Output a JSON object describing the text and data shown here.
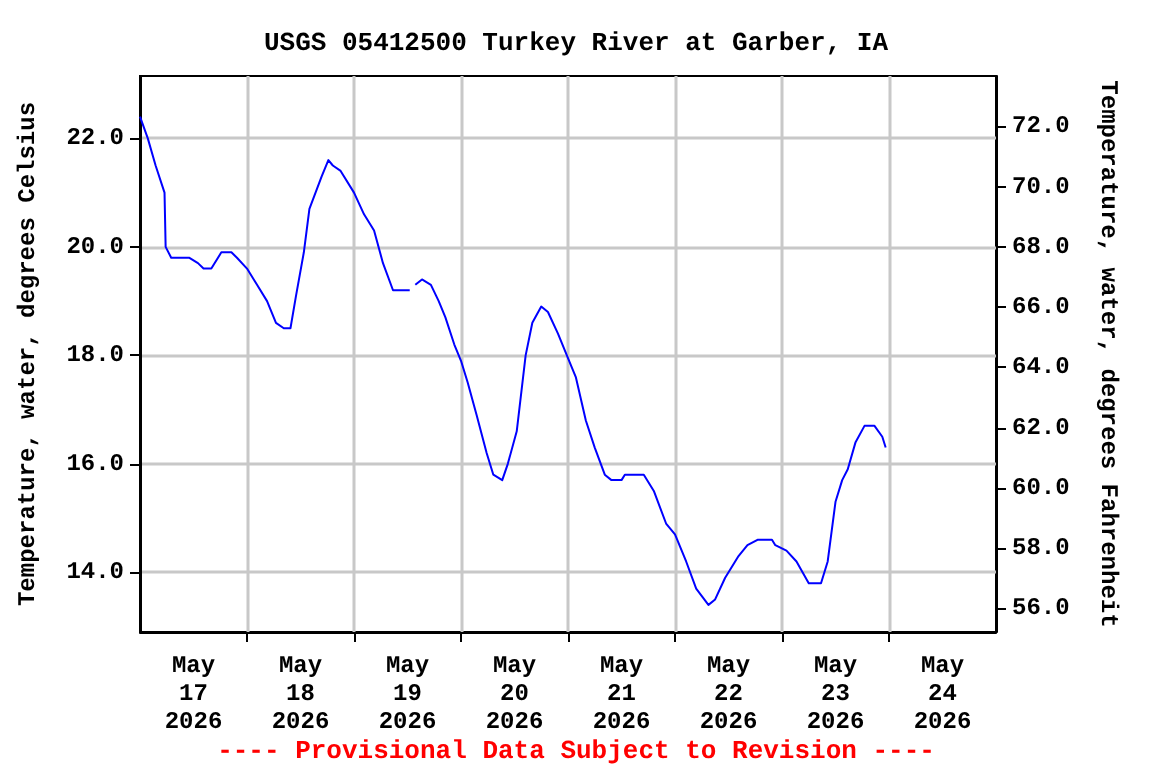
{
  "chart_data": {
    "type": "line",
    "title": "USGS 05412500 Turkey River at Garber, IA",
    "ylabel": "Temperature, water, degrees Celsius",
    "y2label": "Temperature, water, degrees Fahrenheit",
    "annotations": [
      "---- Provisional Data Subject to Revision ----"
    ],
    "x": [
      "2026-05-17T00:00",
      "2026-05-17T01:45",
      "2026-05-17T03:30",
      "2026-05-17T05:30",
      "2026-05-17T05:45",
      "2026-05-17T07:00",
      "2026-05-17T11:00",
      "2026-05-17T13:00",
      "2026-05-17T14:15",
      "2026-05-17T16:00",
      "2026-05-17T18:15",
      "2026-05-17T20:30",
      "2026-05-17T21:45",
      "2026-05-18T00:00",
      "2026-05-18T02:15",
      "2026-05-18T04:30",
      "2026-05-18T06:30",
      "2026-05-18T08:15",
      "2026-05-18T09:45",
      "2026-05-18T11:00",
      "2026-05-18T12:45",
      "2026-05-18T14:00",
      "2026-05-18T16:45",
      "2026-05-18T18:15",
      "2026-05-18T19:15",
      "2026-05-18T21:00",
      "2026-05-19T00:00",
      "2026-05-19T02:15",
      "2026-05-19T04:30",
      "2026-05-19T06:30",
      "2026-05-19T08:45",
      "2026-05-19T12:30",
      "2026-05-19T13:00",
      "2026-05-19T13:45",
      "2026-05-19T15:15",
      "2026-05-19T17:15",
      "2026-05-19T19:00",
      "2026-05-19T20:30",
      "2026-05-19T22:30",
      "2026-05-20T00:00",
      "2026-05-20T01:30",
      "2026-05-20T03:30",
      "2026-05-20T05:45",
      "2026-05-20T07:15",
      "2026-05-20T09:15",
      "2026-05-20T10:30",
      "2026-05-20T12:30",
      "2026-05-20T14:30",
      "2026-05-20T16:00",
      "2026-05-20T18:00",
      "2026-05-20T19:30",
      "2026-05-20T21:45",
      "2026-05-21T00:15",
      "2026-05-21T01:45",
      "2026-05-21T04:00",
      "2026-05-21T06:00",
      "2026-05-21T08:15",
      "2026-05-21T09:45",
      "2026-05-21T12:00",
      "2026-05-21T12:45",
      "2026-05-21T17:00",
      "2026-05-21T19:15",
      "2026-05-21T22:00",
      "2026-05-22T00:00",
      "2026-05-22T02:30",
      "2026-05-22T04:45",
      "2026-05-22T07:30",
      "2026-05-22T09:00",
      "2026-05-22T11:15",
      "2026-05-22T14:15",
      "2026-05-22T16:15",
      "2026-05-22T18:30",
      "2026-05-22T21:45",
      "2026-05-22T22:30",
      "2026-05-23T01:00",
      "2026-05-23T03:15",
      "2026-05-23T06:00",
      "2026-05-23T08:45",
      "2026-05-23T10:15",
      "2026-05-23T12:00",
      "2026-05-23T13:30",
      "2026-05-23T14:45",
      "2026-05-23T16:30",
      "2026-05-23T18:30",
      "2026-05-23T20:45",
      "2026-05-23T22:30",
      "2026-05-23T23:15"
    ],
    "series": [
      {
        "color": "#0000ff",
        "values": [
          22.4,
          22.0,
          21.5,
          21.0,
          20.0,
          19.8,
          19.8,
          19.7,
          19.6,
          19.6,
          19.9,
          19.9,
          19.8,
          19.6,
          19.3,
          19.0,
          18.6,
          18.5,
          18.5,
          19.1,
          19.9,
          20.7,
          21.3,
          21.6,
          21.5,
          21.4,
          21.0,
          20.6,
          20.3,
          19.7,
          19.2,
          19.2,
          null,
          19.3,
          19.4,
          19.3,
          19.0,
          18.7,
          18.2,
          17.9,
          17.5,
          16.9,
          16.2,
          15.8,
          15.7,
          16.0,
          16.6,
          18.0,
          18.6,
          18.9,
          18.8,
          18.4,
          17.9,
          17.6,
          16.8,
          16.3,
          15.8,
          15.7,
          15.7,
          15.8,
          15.8,
          15.5,
          14.9,
          14.7,
          14.2,
          13.7,
          13.4,
          13.5,
          13.9,
          14.3,
          14.5,
          14.6,
          14.6,
          14.5,
          14.4,
          14.2,
          13.8,
          13.8,
          14.2,
          15.3,
          15.7,
          15.9,
          16.4,
          16.7,
          16.7,
          16.5,
          16.3
        ]
      }
    ],
    "xlim": [
      "2026-05-17T00:00",
      "2026-05-25T00:00"
    ],
    "xticks": [
      {
        "value": "2026-05-17T12:00",
        "label": "May\n17\n2026"
      },
      {
        "value": "2026-05-18T12:00",
        "label": "May\n18\n2026"
      },
      {
        "value": "2026-05-19T12:00",
        "label": "May\n19\n2026"
      },
      {
        "value": "2026-05-20T12:00",
        "label": "May\n20\n2026"
      },
      {
        "value": "2026-05-21T12:00",
        "label": "May\n21\n2026"
      },
      {
        "value": "2026-05-22T12:00",
        "label": "May\n22\n2026"
      },
      {
        "value": "2026-05-23T12:00",
        "label": "May\n23\n2026"
      },
      {
        "value": "2026-05-24T12:00",
        "label": "May\n24\n2026"
      },
      {
        "value": "2026-05-18T00:00",
        "label": null
      },
      {
        "value": "2026-05-19T00:00",
        "label": null
      },
      {
        "value": "2026-05-20T00:00",
        "label": null
      },
      {
        "value": "2026-05-21T00:00",
        "label": null
      },
      {
        "value": "2026-05-22T00:00",
        "label": null
      },
      {
        "value": "2026-05-23T00:00",
        "label": null
      },
      {
        "value": "2026-05-24T00:00",
        "label": null
      }
    ],
    "ylim": [
      12.9,
      23.15
    ],
    "yticks": [
      {
        "value": 14,
        "label": "14.0"
      },
      {
        "value": 16,
        "label": "16.0"
      },
      {
        "value": 18,
        "label": "18.0"
      },
      {
        "value": 20,
        "label": "20.0"
      },
      {
        "value": 22,
        "label": "22.0"
      }
    ],
    "y2lim": [
      55.22,
      73.67
    ],
    "y2ticks": [
      {
        "value": 56,
        "label": "56.0"
      },
      {
        "value": 58,
        "label": "58.0"
      },
      {
        "value": 60,
        "label": "60.0"
      },
      {
        "value": 62,
        "label": "62.0"
      },
      {
        "value": 64,
        "label": "64.0"
      },
      {
        "value": 66,
        "label": "66.0"
      },
      {
        "value": 68,
        "label": "68.0"
      },
      {
        "value": 70,
        "label": "70.0"
      },
      {
        "value": 72,
        "label": "72.0"
      }
    ],
    "grid": true,
    "marker": "none",
    "line_style": "solid"
  }
}
